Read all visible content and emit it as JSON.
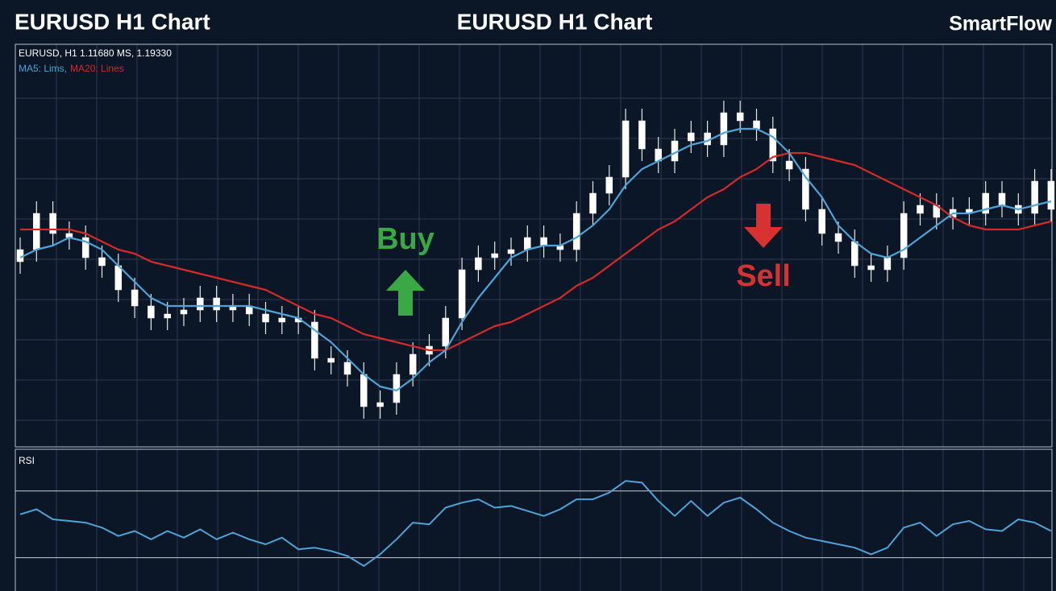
{
  "header": {
    "left_title": "EURUSD H1 Chart",
    "center_title": "EURUSD H1 Chart",
    "brand": "SmartFlow"
  },
  "chart_data": [
    {
      "type": "candlestick",
      "info": "EURUSD, H1  1.11680 MS, 1.19330",
      "open": [
        46,
        49,
        58,
        53,
        52,
        47,
        45,
        39,
        35,
        32,
        33,
        34,
        37,
        34,
        35,
        33,
        31,
        32,
        31,
        22,
        21,
        18,
        10,
        11,
        18,
        23,
        25,
        32,
        44,
        47,
        48,
        49,
        52,
        50,
        49,
        58,
        63,
        67,
        81,
        74,
        71,
        76,
        78,
        75,
        83,
        81,
        79,
        71,
        69,
        59,
        53,
        51,
        45,
        44,
        47,
        58,
        60,
        57,
        59,
        58,
        63,
        60,
        58,
        66
      ],
      "high": [
        52,
        61,
        61,
        56,
        55,
        50,
        48,
        42,
        38,
        36,
        37,
        40,
        40,
        38,
        38,
        36,
        35,
        35,
        34,
        25,
        24,
        21,
        14,
        21,
        26,
        28,
        35,
        47,
        50,
        51,
        52,
        55,
        55,
        53,
        61,
        66,
        70,
        84,
        84,
        77,
        79,
        81,
        81,
        86,
        86,
        84,
        82,
        74,
        72,
        62,
        56,
        54,
        48,
        50,
        61,
        63,
        63,
        62,
        62,
        66,
        66,
        63,
        69,
        69
      ],
      "low": [
        43,
        46,
        50,
        49,
        44,
        42,
        36,
        32,
        29,
        29,
        30,
        31,
        31,
        31,
        30,
        28,
        28,
        28,
        19,
        18,
        15,
        7,
        7,
        8,
        15,
        20,
        22,
        29,
        41,
        44,
        45,
        46,
        47,
        46,
        46,
        55,
        60,
        64,
        71,
        68,
        68,
        73,
        72,
        72,
        78,
        76,
        68,
        66,
        56,
        50,
        48,
        42,
        41,
        41,
        44,
        55,
        54,
        54,
        55,
        55,
        57,
        55,
        55,
        56
      ],
      "close": [
        49,
        58,
        53,
        52,
        47,
        45,
        39,
        35,
        32,
        33,
        34,
        37,
        34,
        35,
        33,
        31,
        32,
        31,
        22,
        21,
        18,
        10,
        11,
        18,
        23,
        25,
        32,
        44,
        47,
        48,
        49,
        52,
        50,
        49,
        58,
        63,
        67,
        81,
        74,
        71,
        76,
        78,
        75,
        83,
        81,
        79,
        71,
        69,
        59,
        53,
        51,
        45,
        44,
        47,
        58,
        60,
        57,
        59,
        58,
        63,
        60,
        58,
        66,
        59
      ],
      "ylim": [
        0,
        100
      ],
      "series": [
        {
          "name": "MA5: Lims,",
          "color": "#4ea3d8",
          "values": [
            47,
            49,
            50,
            52,
            51,
            49,
            45,
            41,
            37,
            35,
            35,
            35,
            35,
            35,
            35,
            34,
            33,
            32,
            29,
            26,
            22,
            18,
            15,
            14,
            17,
            21,
            24,
            31,
            37,
            42,
            47,
            49,
            50,
            50,
            52,
            55,
            59,
            65,
            69,
            71,
            73,
            75,
            76,
            78,
            79,
            79,
            77,
            73,
            67,
            62,
            55,
            51,
            48,
            47,
            49,
            52,
            55,
            58,
            58,
            59,
            60,
            59,
            60,
            61
          ]
        },
        {
          "name": "MA20: Lines",
          "color": "#d42a2a",
          "values": [
            54,
            54,
            54,
            54,
            53,
            51,
            49,
            48,
            46,
            45,
            44,
            43,
            42,
            41,
            40,
            39,
            37,
            35,
            33,
            32,
            30,
            28,
            27,
            26,
            25,
            24,
            24,
            26,
            28,
            30,
            31,
            33,
            35,
            37,
            40,
            42,
            45,
            48,
            51,
            54,
            56,
            59,
            62,
            64,
            67,
            69,
            72,
            73,
            73,
            72,
            71,
            70,
            68,
            66,
            64,
            62,
            60,
            57,
            55,
            54,
            54,
            54,
            55,
            56
          ]
        }
      ],
      "annotations": [
        {
          "text": "Buy",
          "color": "#3aa845"
        },
        {
          "text": "Sell",
          "color": "#d63232"
        }
      ]
    },
    {
      "type": "line",
      "title": "RSI",
      "color": "#4ea3d8",
      "values": [
        56,
        59,
        53,
        52,
        51,
        48,
        43,
        46,
        41,
        46,
        42,
        47,
        41,
        45,
        41,
        38,
        42,
        35,
        36,
        34,
        31,
        25,
        32,
        41,
        51,
        50,
        60,
        63,
        65,
        60,
        61,
        58,
        55,
        59,
        65,
        65,
        69,
        76,
        75,
        64,
        55,
        64,
        55,
        63,
        66,
        59,
        51,
        46,
        42,
        40,
        38,
        36,
        32,
        36,
        48,
        51,
        43,
        50,
        52,
        47,
        46,
        53,
        51,
        46
      ],
      "ylim": [
        10,
        95
      ],
      "levels": [
        70,
        30
      ]
    }
  ]
}
